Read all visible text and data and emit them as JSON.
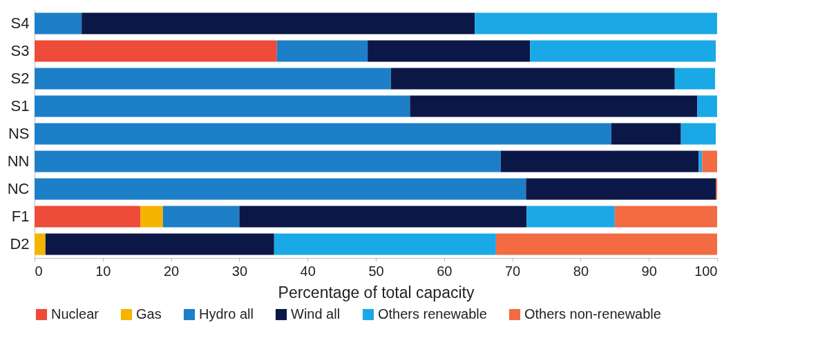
{
  "chart_data": {
    "type": "bar",
    "orientation": "horizontal",
    "stacked": true,
    "xlabel": "Percentage of total capacity",
    "categories": [
      "S4",
      "S3",
      "S2",
      "S1",
      "NS",
      "NN",
      "NC",
      "F1",
      "D2"
    ],
    "xlim": [
      0,
      100
    ],
    "xticks": [
      0,
      10,
      20,
      30,
      40,
      50,
      60,
      70,
      80,
      90,
      100
    ],
    "grid": false,
    "legend": "bottom",
    "series": [
      {
        "name": "Nuclear",
        "color": "#ee4b3a",
        "values": [
          null,
          35.5,
          null,
          null,
          null,
          null,
          null,
          15.5,
          null
        ]
      },
      {
        "name": "Gas",
        "color": "#f5b400",
        "values": [
          null,
          null,
          null,
          null,
          null,
          null,
          null,
          3.3,
          1.6
        ]
      },
      {
        "name": "Hydro all",
        "color": "#1d7fc7",
        "values": [
          6.9,
          13.3,
          52.2,
          55,
          84.5,
          68.3,
          72,
          11.2,
          null
        ]
      },
      {
        "name": "Wind all",
        "color": "#0b1747",
        "values": [
          57.6,
          23.8,
          41.6,
          42.1,
          10.2,
          29,
          27.8,
          42.1,
          33.5
        ]
      },
      {
        "name": "Others renewable",
        "color": "#1ba8e6",
        "values": [
          35.5,
          27.2,
          5.9,
          2.9,
          5.1,
          0.5,
          null,
          12.9,
          32.5
        ]
      },
      {
        "name": "Others non-renewable",
        "color": "#f26b43",
        "values": [
          null,
          null,
          null,
          null,
          null,
          2.2,
          0.2,
          15,
          32.4
        ]
      }
    ]
  }
}
